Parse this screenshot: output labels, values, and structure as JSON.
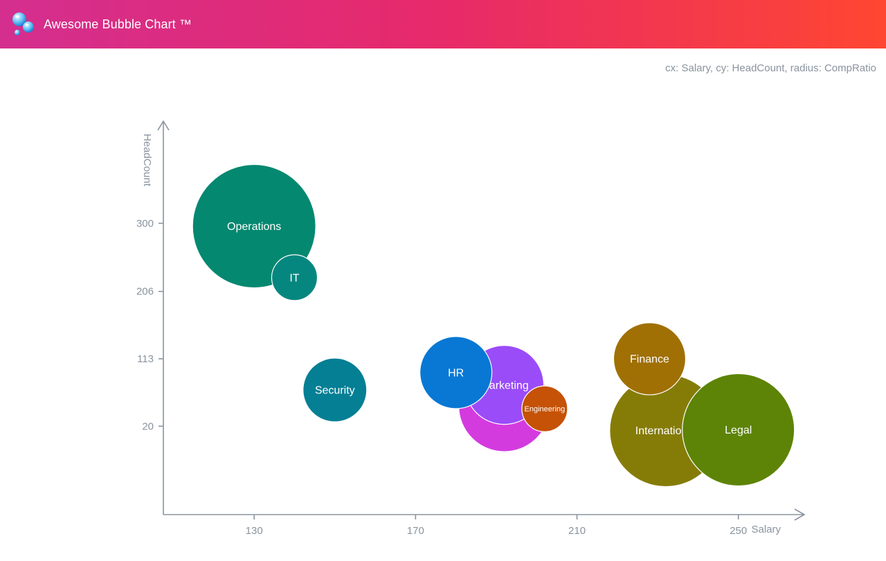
{
  "header": {
    "title": "Awesome Bubble Chart ™",
    "logo_icon": "bubbles-icon"
  },
  "caption": "cx: Salary, cy: HeadCount, radius: CompRatio",
  "chart_data": {
    "type": "scatter",
    "variant": "bubble",
    "xlabel": "Salary",
    "ylabel": "HeadCount",
    "xlim": [
      107.5,
      266
    ],
    "ylim": [
      -102,
      438
    ],
    "xticks": [
      130,
      170,
      210,
      250
    ],
    "yticks": [
      20,
      113,
      206,
      300
    ],
    "grid": false,
    "series": [
      {
        "label": "Operations",
        "x": 130,
        "y": 296,
        "r": 89,
        "color": "#048870"
      },
      {
        "label": "IT",
        "x": 140,
        "y": 225,
        "r": 33,
        "color": "#05877f"
      },
      {
        "label": "Security",
        "x": 150,
        "y": 70,
        "r": 46,
        "color": "#047f94"
      },
      {
        "label": "Marketing",
        "x": 192,
        "y": 48,
        "r": 66,
        "color": "#d43bdf"
      },
      {
        "label": "Marketing",
        "x": 192,
        "y": 77,
        "r": 57,
        "color": "#9a4cf8"
      },
      {
        "label": "HR",
        "x": 180,
        "y": 94,
        "r": 52,
        "color": "#0878d4"
      },
      {
        "label": "Engineering",
        "x": 202,
        "y": 44,
        "r": 33,
        "color": "#c55206"
      },
      {
        "label": "International",
        "x": 232,
        "y": 14,
        "r": 81,
        "color": "#857c08"
      },
      {
        "label": "Finance",
        "x": 228,
        "y": 113,
        "r": 52,
        "color": "#a07004"
      },
      {
        "label": "Legal",
        "x": 250,
        "y": 15,
        "r": 81,
        "color": "#5d8406"
      }
    ]
  }
}
